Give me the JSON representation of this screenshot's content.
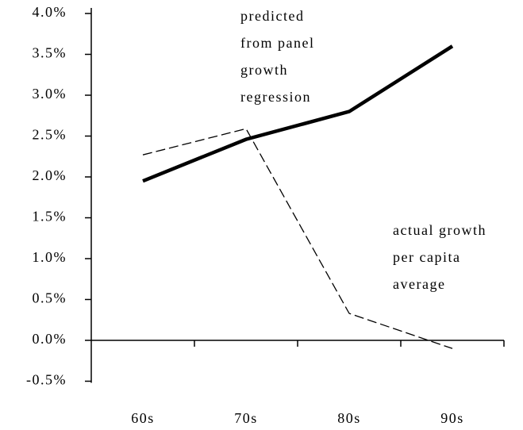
{
  "chart_data": {
    "type": "line",
    "categories": [
      "60s",
      "70s",
      "80s",
      "90s"
    ],
    "series": [
      {
        "color": "#000000",
        "style": "solid",
        "values": [
          1.95,
          2.46,
          2.8,
          3.6
        ]
      },
      {
        "color": "#000000",
        "style": "dashed",
        "values": [
          2.27,
          2.59,
          0.33,
          -0.1
        ]
      }
    ],
    "annotations": [
      {
        "lines": [
          "predicted",
          "from panel",
          "growth",
          "regression"
        ]
      },
      {
        "lines": [
          "actual growth",
          "per capita",
          "average"
        ]
      }
    ],
    "ylim": [
      -0.5,
      4.0
    ],
    "yticks": [
      {
        "value": -0.5,
        "label": "-0.5%"
      },
      {
        "value": 0,
        "label": "0.0%"
      },
      {
        "value": 0.5,
        "label": "0.5%"
      },
      {
        "value": 1.0,
        "label": "1.0%"
      },
      {
        "value": 1.5,
        "label": "1.5%"
      },
      {
        "value": 2.0,
        "label": "2.0%"
      },
      {
        "value": 2.5,
        "label": "2.5%"
      },
      {
        "value": 3.0,
        "label": "3.0%"
      },
      {
        "value": 3.5,
        "label": "3.5%"
      },
      {
        "value": 4.0,
        "label": "4.0%"
      }
    ],
    "grid": false
  }
}
